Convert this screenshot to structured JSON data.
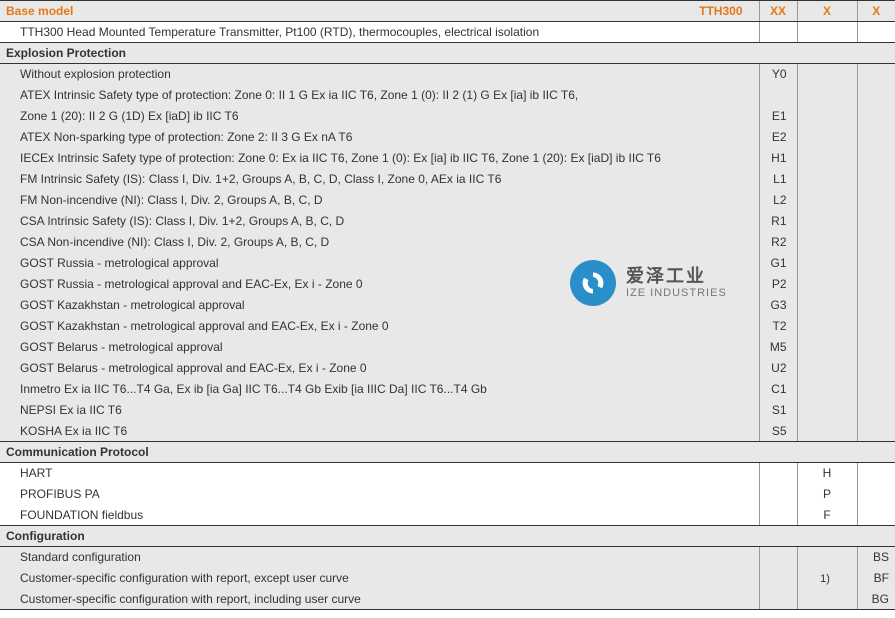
{
  "colors": {
    "accent": "#e67817",
    "header_bg": "#e8e8e8",
    "border": "#333333",
    "divider": "#999999",
    "text": "#333333",
    "watermark_blue": "#2a8fc9",
    "watermark_text": "#555555",
    "watermark_sub": "#777777",
    "white": "#ffffff"
  },
  "header": {
    "label": "Base model",
    "model": "TTH300",
    "x1": "XX",
    "x2": "X",
    "x3": "X",
    "description": "TTH300 Head Mounted Temperature Transmitter, Pt100 (RTD), thermocouples, electrical isolation"
  },
  "sections": [
    {
      "title": "Explosion Protection",
      "code_col": 1,
      "rows": [
        {
          "text": "Without explosion protection",
          "code": "Y0"
        },
        {
          "text": "ATEX Intrinsic Safety type of protection: Zone 0: II 1 G Ex ia IIC T6, Zone 1 (0): II 2 (1) G Ex [ia] ib IIC T6,",
          "code": ""
        },
        {
          "text": "Zone 1 (20): II 2 G (1D) Ex [iaD] ib IIC T6",
          "code": "E1"
        },
        {
          "text": "ATEX Non-sparking type of protection: Zone 2: II 3 G Ex nA T6",
          "code": "E2"
        },
        {
          "text": "IECEx Intrinsic Safety type of protection: Zone 0: Ex ia IIC T6, Zone 1 (0): Ex [ia] ib IIC T6, Zone 1 (20): Ex [iaD] ib IIC T6",
          "code": "H1"
        },
        {
          "text": "FM Intrinsic Safety (IS): Class I, Div. 1+2, Groups A, B, C, D, Class I, Zone 0, AEx ia IIC T6",
          "code": "L1"
        },
        {
          "text": "FM Non-incendive (NI): Class I, Div. 2, Groups A, B, C, D",
          "code": "L2"
        },
        {
          "text": "CSA Intrinsic Safety (IS): Class I, Div. 1+2, Groups A, B, C, D",
          "code": "R1"
        },
        {
          "text": "CSA Non-incendive (NI): Class I, Div. 2, Groups A, B, C, D",
          "code": "R2"
        },
        {
          "text": "GOST Russia - metrological approval",
          "code": "G1"
        },
        {
          "text": "GOST Russia - metrological approval and EAC-Ex, Ex i - Zone 0",
          "code": "P2"
        },
        {
          "text": "GOST Kazakhstan - metrological approval",
          "code": "G3"
        },
        {
          "text": "GOST Kazakhstan - metrological approval and EAC-Ex, Ex i - Zone 0",
          "code": "T2"
        },
        {
          "text": "GOST Belarus - metrological approval",
          "code": "M5"
        },
        {
          "text": "GOST Belarus - metrological approval and EAC-Ex, Ex i - Zone 0",
          "code": "U2"
        },
        {
          "text": "Inmetro Ex ia IIC T6...T4 Ga, Ex ib [ia Ga] IIC T6...T4 Gb Exib [ia IIIC Da] IIC T6...T4 Gb",
          "code": "C1"
        },
        {
          "text": "NEPSI Ex ia IIC T6",
          "code": "S1"
        },
        {
          "text": "KOSHA Ex ia IIC T6",
          "code": "S5"
        }
      ]
    },
    {
      "title": "Communication Protocol",
      "bg": "white",
      "code_col": 2,
      "rows": [
        {
          "text": "HART",
          "code": "H"
        },
        {
          "text": "PROFIBUS PA",
          "code": "P"
        },
        {
          "text": "FOUNDATION fieldbus",
          "code": "F"
        }
      ]
    },
    {
      "title": "Configuration",
      "code_col": 3,
      "rows": [
        {
          "text": "Standard configuration",
          "code": "BS"
        },
        {
          "text": "Customer-specific configuration with report, except user curve",
          "note": "1)",
          "code": "BF"
        },
        {
          "text": "Customer-specific configuration with report, including user curve",
          "code": "BG"
        }
      ]
    }
  ],
  "watermark": {
    "cn": "爱泽工业",
    "en": "IZE INDUSTRIES"
  }
}
